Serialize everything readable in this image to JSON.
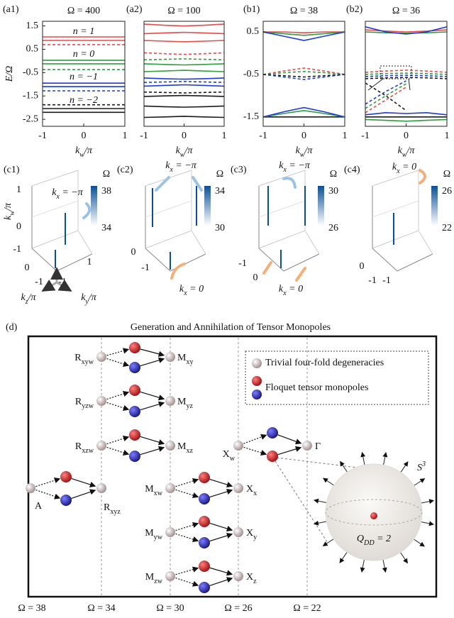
{
  "chart_data": [
    {
      "type": "line",
      "label": "(a1)",
      "title": "Ω = 400",
      "xlabel": [
        "k",
        {
          "sub": "w"
        },
        "/π"
      ],
      "ylabel": "E/Ω",
      "x": [
        -1,
        -0.5,
        0,
        0.5,
        1
      ],
      "xlim": [
        -1,
        1
      ],
      "xticks": [
        -1,
        0,
        1
      ],
      "ylim": [
        -2.8,
        1.7
      ],
      "yticks": [
        1.5,
        0.5,
        -0.5,
        -1.5,
        -2.5
      ],
      "annotations": [
        "n = 1",
        "n = 0",
        "n = −1",
        "n = −2"
      ],
      "series": [
        {
          "color": "#e84a4a",
          "dashed": false,
          "values": [
            1.03,
            1.03,
            1.03,
            1.03,
            1.03
          ]
        },
        {
          "color": "#e84a4a",
          "dashed": false,
          "values": [
            0.88,
            0.88,
            0.88,
            0.88,
            0.88
          ]
        },
        {
          "color": "#e84a4a",
          "dashed": true,
          "values": [
            0.7,
            0.7,
            0.7,
            0.7,
            0.7
          ]
        },
        {
          "color": "#2e9e3e",
          "dashed": false,
          "values": [
            0.03,
            0.03,
            0.03,
            0.03,
            0.03
          ]
        },
        {
          "color": "#2e9e3e",
          "dashed": false,
          "values": [
            -0.12,
            -0.12,
            -0.12,
            -0.12,
            -0.12
          ]
        },
        {
          "color": "#2e9e3e",
          "dashed": true,
          "values": [
            -0.37,
            -0.37,
            -0.37,
            -0.37,
            -0.37
          ]
        },
        {
          "color": "#1c3bd8",
          "dashed": false,
          "values": [
            -0.95,
            -0.95,
            -0.95,
            -0.95,
            -0.95
          ]
        },
        {
          "color": "#1c3bd8",
          "dashed": false,
          "values": [
            -1.1,
            -1.1,
            -1.1,
            -1.1,
            -1.1
          ]
        },
        {
          "color": "#1c3bd8",
          "dashed": true,
          "values": [
            -1.28,
            -1.28,
            -1.28,
            -1.28,
            -1.28
          ]
        },
        {
          "color": "#1a1a1a",
          "dashed": true,
          "values": [
            -1.88,
            -1.88,
            -1.88,
            -1.88,
            -1.88
          ]
        },
        {
          "color": "#1a1a1a",
          "dashed": false,
          "values": [
            -2.04,
            -2.04,
            -2.04,
            -2.04,
            -2.04
          ]
        },
        {
          "color": "#1a1a1a",
          "dashed": false,
          "values": [
            -2.2,
            -2.2,
            -2.2,
            -2.2,
            -2.2
          ]
        }
      ]
    },
    {
      "type": "line",
      "label": "(a2)",
      "title": "Ω = 100",
      "xlabel": [
        "k",
        {
          "sub": "w"
        },
        "/π"
      ],
      "x": [
        -1,
        -0.5,
        0,
        0.5,
        1
      ],
      "xlim": [
        -1,
        1
      ],
      "xticks": [
        -1,
        0,
        1
      ],
      "ylim": [
        -2.8,
        1.7
      ],
      "series": [
        {
          "color": "#e84a4a",
          "dashed": false,
          "values": [
            1.58,
            1.53,
            1.5,
            1.53,
            1.58
          ]
        },
        {
          "color": "#e84a4a",
          "dashed": false,
          "values": [
            1.17,
            1.2,
            1.23,
            1.2,
            1.17
          ]
        },
        {
          "color": "#e84a4a",
          "dashed": false,
          "values": [
            0.88,
            0.85,
            0.82,
            0.85,
            0.88
          ]
        },
        {
          "color": "#e84a4a",
          "dashed": true,
          "values": [
            0.35,
            0.31,
            0.28,
            0.31,
            0.35
          ]
        },
        {
          "color": "#2e9e3e",
          "dashed": true,
          "values": [
            0.05,
            0.07,
            0.09,
            0.07,
            0.05
          ]
        },
        {
          "color": "#2e9e3e",
          "dashed": false,
          "values": [
            -0.12,
            -0.15,
            -0.17,
            -0.15,
            -0.12
          ]
        },
        {
          "color": "#2e9e3e",
          "dashed": false,
          "values": [
            -0.46,
            -0.43,
            -0.4,
            -0.43,
            -0.46
          ]
        },
        {
          "color": "#1c3bd8",
          "dashed": false,
          "values": [
            -0.73,
            -0.76,
            -0.78,
            -0.76,
            -0.73
          ]
        },
        {
          "color": "#1c3bd8",
          "dashed": true,
          "values": [
            -0.92,
            -0.9,
            -0.88,
            -0.9,
            -0.92
          ]
        },
        {
          "color": "#1c3bd8",
          "dashed": false,
          "values": [
            -1.08,
            -1.05,
            -1.02,
            -1.05,
            -1.08
          ]
        },
        {
          "color": "#1a1a1a",
          "dashed": true,
          "values": [
            -1.33,
            -1.35,
            -1.37,
            -1.35,
            -1.33
          ]
        },
        {
          "color": "#1a1a1a",
          "dashed": false,
          "values": [
            -1.52,
            -1.5,
            -1.48,
            -1.5,
            -1.52
          ]
        },
        {
          "color": "#1a1a1a",
          "dashed": false,
          "values": [
            -1.93,
            -1.96,
            -1.98,
            -1.96,
            -1.93
          ]
        },
        {
          "color": "#1a1a1a",
          "dashed": false,
          "values": [
            -2.42,
            -2.4,
            -2.37,
            -2.4,
            -2.42
          ]
        }
      ]
    },
    {
      "type": "line",
      "label": "(b1)",
      "title": "Ω = 38",
      "xlabel": [
        "k",
        {
          "sub": "w"
        },
        "/π"
      ],
      "x": [
        -1,
        -0.5,
        0,
        0.5,
        1
      ],
      "xlim": [
        -1,
        1
      ],
      "xticks": [
        -1,
        0,
        1
      ],
      "ylim": [
        -1.72,
        0.75
      ],
      "yticks": [
        0.5,
        -0.5,
        -1.5
      ],
      "series": [
        {
          "color": "#e84a4a",
          "dashed": false,
          "values": [
            0.5,
            0.5,
            0.48,
            0.5,
            0.5
          ]
        },
        {
          "color": "#2e9e3e",
          "dashed": false,
          "values": [
            0.5,
            0.46,
            0.42,
            0.46,
            0.5
          ]
        },
        {
          "color": "#1c3bd8",
          "dashed": false,
          "values": [
            0.5,
            0.4,
            0.3,
            0.4,
            0.5
          ]
        },
        {
          "color": "#e84a4a",
          "dashed": true,
          "values": [
            -0.5,
            -0.42,
            -0.35,
            -0.42,
            -0.5
          ]
        },
        {
          "color": "#2e9e3e",
          "dashed": true,
          "values": [
            -0.5,
            -0.46,
            -0.43,
            -0.46,
            -0.5
          ]
        },
        {
          "color": "#1a1a1a",
          "dashed": true,
          "values": [
            -0.5,
            -0.53,
            -0.56,
            -0.53,
            -0.5
          ]
        },
        {
          "color": "#1c3bd8",
          "dashed": true,
          "values": [
            -0.5,
            -0.56,
            -0.62,
            -0.56,
            -0.5
          ]
        },
        {
          "color": "#1a1a1a",
          "dashed": false,
          "values": [
            -1.5,
            -1.5,
            -1.5,
            -1.5,
            -1.5
          ]
        },
        {
          "color": "#2e9e3e",
          "dashed": false,
          "values": [
            -1.5,
            -1.42,
            -1.35,
            -1.42,
            -1.5
          ]
        },
        {
          "color": "#1c3bd8",
          "dashed": false,
          "values": [
            -1.5,
            -1.38,
            -1.28,
            -1.38,
            -1.5
          ]
        }
      ]
    },
    {
      "type": "line",
      "label": "(b2)",
      "title": "Ω = 36",
      "xlabel": [
        "k",
        {
          "sub": "w"
        },
        "/π"
      ],
      "x": [
        -1,
        -0.5,
        0,
        0.5,
        1
      ],
      "xlim": [
        -1,
        1
      ],
      "xticks": [
        -1,
        0,
        1
      ],
      "ylim": [
        -1.72,
        0.75
      ],
      "series": [
        {
          "color": "#e84a4a",
          "dashed": false,
          "values": [
            0.55,
            0.52,
            0.5,
            0.52,
            0.55
          ]
        },
        {
          "color": "#2e9e3e",
          "dashed": false,
          "values": [
            0.5,
            0.48,
            0.47,
            0.48,
            0.5
          ]
        },
        {
          "color": "#1c3bd8",
          "dashed": false,
          "values": [
            0.62,
            0.5,
            0.45,
            0.5,
            0.62
          ]
        },
        {
          "color": "#e84a4a",
          "dashed": true,
          "values": [
            -0.45,
            -0.42,
            -0.4,
            -0.42,
            -0.45
          ]
        },
        {
          "color": "#2e9e3e",
          "dashed": true,
          "values": [
            -0.5,
            -0.48,
            -0.47,
            -0.48,
            -0.5
          ]
        },
        {
          "color": "#1c3bd8",
          "dashed": true,
          "values": [
            -0.55,
            -0.53,
            -0.52,
            -0.53,
            -0.55
          ]
        },
        {
          "color": "#1a1a1a",
          "dashed": true,
          "values": [
            -0.6,
            -0.58,
            -0.57,
            -0.58,
            -0.6
          ]
        },
        {
          "color": "#1a1a1a",
          "dashed": true,
          "values": [
            -0.7,
            -1.0,
            -1.35,
            null,
            null
          ]
        },
        {
          "color": "#e84a4a",
          "dashed": true,
          "values": [
            -1.4,
            -1.1,
            -0.8,
            null,
            null
          ]
        },
        {
          "color": "#2e9e3e",
          "dashed": true,
          "values": [
            -1.3,
            -1.0,
            -0.72,
            null,
            null
          ]
        },
        {
          "color": "#1c3bd8",
          "dashed": true,
          "values": [
            -1.2,
            -0.9,
            -0.65,
            null,
            null
          ]
        },
        {
          "color": "#1a1a1a",
          "dashed": false,
          "values": [
            -1.5,
            -1.5,
            -1.5,
            -1.5,
            -1.5
          ]
        },
        {
          "color": "#1c3bd8",
          "dashed": false,
          "values": [
            -1.45,
            -1.4,
            -1.42,
            -1.4,
            -1.45
          ]
        },
        {
          "color": "#2e9e3e",
          "dashed": false,
          "values": [
            -1.56,
            -1.58,
            -1.6,
            -1.58,
            -1.56
          ]
        }
      ]
    }
  ],
  "panels_c": [
    {
      "label": "(c1)",
      "colorbar": {
        "title": "Ω",
        "max": 38,
        "min": 34
      },
      "axis_label": [
        "k",
        {
          "sub": "w"
        },
        "/π"
      ],
      "axis_ticks": [
        1,
        0,
        -1
      ],
      "base_ticks": [
        0,
        -1,
        -1,
        1
      ],
      "base_labels": [
        [
          "k",
          {
            "sub": "z"
          },
          "/π"
        ],
        [
          "k",
          {
            "sub": "y"
          },
          "/π"
        ]
      ],
      "annotations": [
        [
          "k",
          {
            "sub": "x"
          },
          " = −π"
        ]
      ]
    },
    {
      "label": "(c2)",
      "colorbar": {
        "title": "Ω",
        "max": 34,
        "min": 30
      },
      "base_ticks": [
        0,
        -1
      ],
      "annotations": [
        [
          "k",
          {
            "sub": "x"
          },
          " = −π"
        ],
        [
          "k",
          {
            "sub": "x"
          },
          " = 0"
        ]
      ]
    },
    {
      "label": "(c3)",
      "colorbar": {
        "title": "Ω",
        "max": 30,
        "min": 26
      },
      "base_ticks": [
        -1,
        0
      ],
      "annotations": [
        [
          "k",
          {
            "sub": "x"
          },
          " = −π"
        ],
        [
          "k",
          {
            "sub": "x"
          },
          " = 0"
        ]
      ]
    },
    {
      "label": "(c4)",
      "colorbar": {
        "title": "Ω",
        "max": 26,
        "min": 22
      },
      "base_ticks": [
        0,
        -1,
        -1
      ],
      "annotations": [
        [
          "k",
          {
            "sub": "x"
          },
          " = 0"
        ]
      ]
    }
  ],
  "diagram": {
    "label": "(d)",
    "title": "Generation and Annihilation of Tensor Monopoles",
    "legend": [
      "Trivial four-fold degeneracies",
      "Floquet tensor monopoles"
    ],
    "nodes": [
      [
        "R",
        {
          "sub": "xyw"
        }
      ],
      [
        "M",
        {
          "sub": "xy"
        }
      ],
      [
        "R",
        {
          "sub": "yzw"
        }
      ],
      [
        "M",
        {
          "sub": "yz"
        }
      ],
      [
        "R",
        {
          "sub": "xzw"
        }
      ],
      [
        "M",
        {
          "sub": "xz"
        }
      ],
      [
        "A"
      ],
      [
        "R",
        {
          "sub": "xyz"
        }
      ],
      [
        "M",
        {
          "sub": "xw"
        }
      ],
      [
        "X",
        {
          "sub": "x"
        }
      ],
      [
        "M",
        {
          "sub": "yw"
        }
      ],
      [
        "X",
        {
          "sub": "y"
        }
      ],
      [
        "M",
        {
          "sub": "zw"
        }
      ],
      [
        "X",
        {
          "sub": "z"
        }
      ],
      [
        "X",
        {
          "sub": "w"
        }
      ],
      [
        "Γ"
      ]
    ],
    "sphere": {
      "label": [
        "S",
        {
          "sup": "3"
        }
      ],
      "charge": [
        "Q",
        {
          "sub": "DD"
        },
        " = 2"
      ]
    },
    "omega_labels": [
      "Ω = 38",
      "Ω = 34",
      "Ω = 30",
      "Ω = 26",
      "Ω = 22"
    ]
  }
}
